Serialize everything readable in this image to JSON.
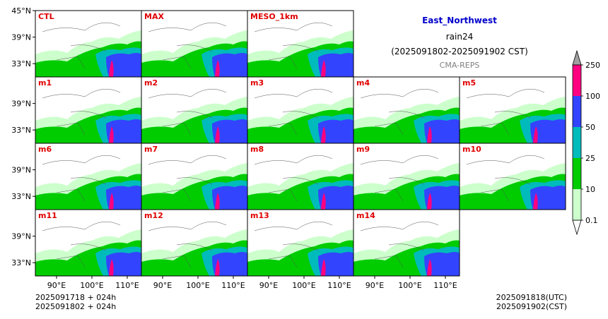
{
  "header": {
    "region": "East_Northwest",
    "region_color": "#0000cc",
    "variable": "rain24",
    "period": "(2025091802-2025091902 CST)",
    "system": "CMA-REPS",
    "system_color": "#808080"
  },
  "footer": {
    "init_utc_line": "2025091718  +  024h",
    "init_cst_line": "2025091802  +  024h",
    "valid_utc": "2025091818(UTC)",
    "valid_cst": "2025091902(CST)"
  },
  "chart_data": {
    "type": "heatmap",
    "panels": [
      {
        "label": "CTL"
      },
      {
        "label": "MAX"
      },
      {
        "label": "MESO_1km"
      },
      {
        "label": "m1"
      },
      {
        "label": "m2"
      },
      {
        "label": "m3"
      },
      {
        "label": "m4"
      },
      {
        "label": "m5"
      },
      {
        "label": "m6"
      },
      {
        "label": "m7"
      },
      {
        "label": "m8"
      },
      {
        "label": "m9"
      },
      {
        "label": "m10"
      },
      {
        "label": "m11"
      },
      {
        "label": "m12"
      },
      {
        "label": "m13"
      },
      {
        "label": "m14"
      }
    ],
    "panel_title_color": "#e00000",
    "x_ticks": [
      "90°E",
      "100°E",
      "110°E"
    ],
    "x_tick_values": [
      90,
      100,
      110
    ],
    "y_ticks": [
      "33°N",
      "39°N",
      "45°N"
    ],
    "y_tick_values": [
      33,
      39,
      45
    ],
    "lon_range": [
      84,
      114
    ],
    "lat_range": [
      30,
      45
    ],
    "colorbar": {
      "levels": [
        "0.1",
        "10",
        "25",
        "50",
        "100",
        "250"
      ],
      "colors": [
        "#ccffcc",
        "#00cc00",
        "#00bbbb",
        "#3344ff",
        "#ff0080"
      ],
      "over_color": "#a0a0a0",
      "under_color": "#ffffff"
    }
  }
}
